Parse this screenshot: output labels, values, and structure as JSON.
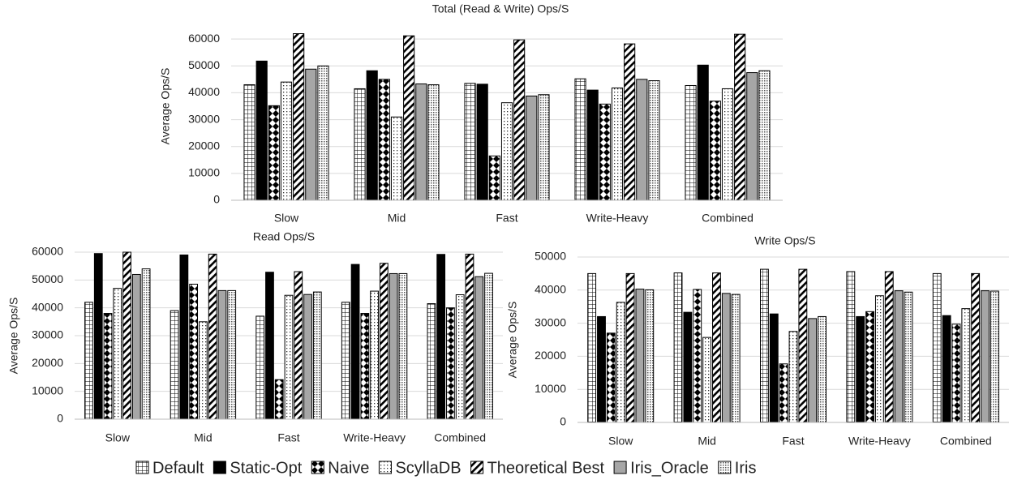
{
  "chart_data": [
    {
      "type": "bar",
      "title": "Total (Read & Write) Ops/S",
      "y_label": "Average Ops/S",
      "categories": [
        "Slow",
        "Mid",
        "Fast",
        "Write-Heavy",
        "Combined"
      ],
      "ylim": [
        0,
        70000
      ],
      "yticks": [
        0,
        10000,
        20000,
        30000,
        40000,
        50000,
        60000
      ],
      "grid": true,
      "series": [
        {
          "name": "Default",
          "pattern": "grid",
          "values": [
            43000,
            41500,
            43500,
            45200,
            42700
          ]
        },
        {
          "name": "Static-Opt",
          "pattern": "solid-black",
          "values": [
            51800,
            48200,
            43200,
            41000,
            50300
          ]
        },
        {
          "name": "Naive",
          "pattern": "diamond",
          "values": [
            35200,
            45000,
            16500,
            35800,
            36900
          ]
        },
        {
          "name": "ScyllaDB",
          "pattern": "sparse-dots",
          "values": [
            44000,
            31000,
            36300,
            41800,
            41500
          ]
        },
        {
          "name": "Theoretical Best",
          "pattern": "stripes",
          "values": [
            62000,
            61200,
            59700,
            58200,
            61800
          ]
        },
        {
          "name": "Iris_Oracle",
          "pattern": "solid-gray",
          "values": [
            48800,
            43300,
            38800,
            45000,
            47500
          ]
        },
        {
          "name": "Iris",
          "pattern": "dense-dots",
          "values": [
            50000,
            43000,
            39300,
            44500,
            48200
          ]
        }
      ]
    },
    {
      "type": "bar",
      "title": "Read Ops/S",
      "y_label": "Average Ops/S",
      "categories": [
        "Slow",
        "Mid",
        "Fast",
        "Write-Heavy",
        "Combined"
      ],
      "ylim": [
        0,
        60000
      ],
      "yticks": [
        0,
        10000,
        20000,
        30000,
        40000,
        50000,
        60000
      ],
      "grid": true,
      "series": [
        {
          "pattern": "grid",
          "values": [
            42000,
            39000,
            37000,
            42000,
            41500
          ]
        },
        {
          "pattern": "solid-black",
          "values": [
            59500,
            59000,
            52800,
            55600,
            59200
          ]
        },
        {
          "pattern": "diamond",
          "values": [
            38000,
            48500,
            14200,
            38000,
            40000
          ]
        },
        {
          "pattern": "sparse-dots",
          "values": [
            47000,
            35000,
            44500,
            46000,
            44700
          ]
        },
        {
          "pattern": "stripes",
          "values": [
            60000,
            59300,
            53000,
            56000,
            59300
          ]
        },
        {
          "pattern": "solid-gray",
          "values": [
            52000,
            46200,
            44800,
            52300,
            51200
          ]
        },
        {
          "pattern": "dense-dots",
          "values": [
            54000,
            46200,
            45700,
            52300,
            52400
          ]
        }
      ]
    },
    {
      "type": "bar",
      "title": "Write Ops/S",
      "y_label": "Average Ops/S",
      "categories": [
        "Slow",
        "Mid",
        "Fast",
        "Write-Heavy",
        "Combined"
      ],
      "ylim": [
        0,
        50000
      ],
      "yticks": [
        0,
        10000,
        20000,
        30000,
        40000,
        50000
      ],
      "grid": true,
      "series": [
        {
          "pattern": "grid",
          "values": [
            45000,
            45200,
            46300,
            45600,
            45000
          ]
        },
        {
          "pattern": "solid-black",
          "values": [
            32000,
            33300,
            32800,
            32000,
            32300
          ]
        },
        {
          "pattern": "diamond",
          "values": [
            27000,
            40200,
            17700,
            33500,
            29700
          ]
        },
        {
          "pattern": "sparse-dots",
          "values": [
            36300,
            25700,
            27500,
            38300,
            34400
          ]
        },
        {
          "pattern": "stripes",
          "values": [
            45000,
            45200,
            46300,
            45600,
            45000
          ]
        },
        {
          "pattern": "solid-gray",
          "values": [
            40300,
            39000,
            31400,
            39800,
            39800
          ]
        },
        {
          "pattern": "dense-dots",
          "values": [
            40100,
            38700,
            32000,
            39400,
            39700
          ]
        }
      ]
    }
  ]
}
